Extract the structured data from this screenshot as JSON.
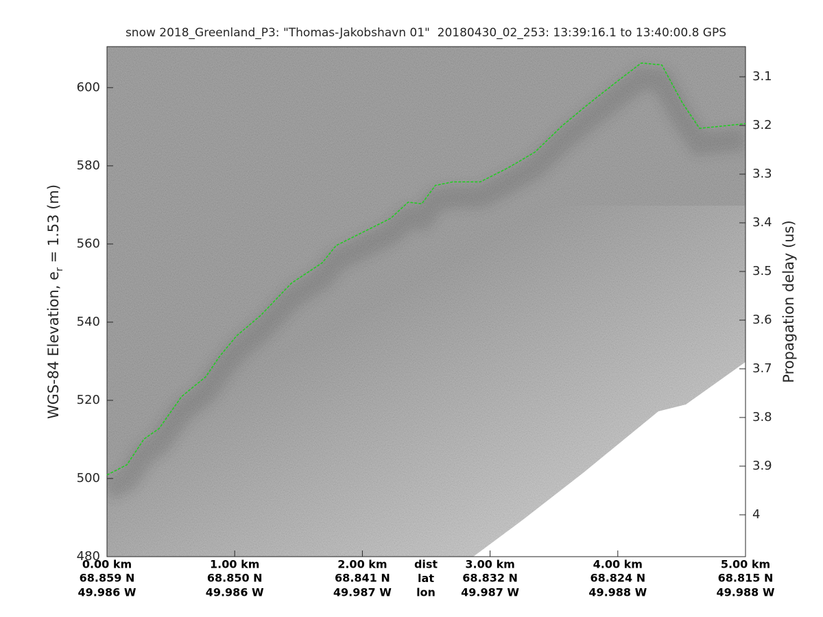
{
  "chart_data": {
    "type": "line",
    "title": "snow 2018_Greenland_P3: \"Thomas-Jakobshavn 01\"  20180430_02_253: 13:39:16.1 to 13:40:00.8 GPS",
    "ylabel": [
      "WGS-84 Elevation, e",
      "r",
      " = 1.53 (m)"
    ],
    "y2label": "Propagation delay (us)",
    "x": [
      0,
      0.156,
      0.29,
      0.408,
      0.585,
      0.773,
      0.881,
      1.015,
      1.203,
      1.445,
      1.686,
      1.794,
      2.009,
      2.223,
      2.358,
      2.465,
      2.572,
      2.707,
      2.922,
      3.136,
      3.351,
      3.566,
      3.781,
      4.023,
      4.184,
      4.345,
      4.506,
      4.64,
      4.855,
      5.0
    ],
    "series": [
      {
        "color": "#22cc22",
        "values": [
          500.9,
          503.5,
          510.1,
          512.8,
          521,
          526,
          531.2,
          536.5,
          541.7,
          550,
          555.2,
          559.6,
          563.1,
          566.6,
          570.7,
          570.3,
          575,
          575.9,
          575.9,
          579.4,
          583.5,
          590.3,
          596.1,
          602.3,
          606.3,
          605.8,
          596.1,
          589.6,
          590.3,
          590.8
        ]
      }
    ],
    "xlim": [
      0,
      5
    ],
    "xticks": [
      {
        "value": 0,
        "label": "0.00 km"
      },
      {
        "value": 1,
        "label": "1.00 km"
      },
      {
        "value": 2,
        "label": "2.00 km"
      },
      {
        "value": 3,
        "label": "3.00 km"
      },
      {
        "value": 4,
        "label": "4.00 km"
      },
      {
        "value": 5,
        "label": "5.00 km"
      }
    ],
    "lat_labels": [
      "68.859 N",
      "68.850 N",
      "68.841 N",
      "68.832 N",
      "68.824 N",
      "68.815 N"
    ],
    "lon_labels": [
      "49.986 W",
      "49.986 W",
      "49.987 W",
      "49.987 W",
      "49.988 W",
      "49.988 W"
    ],
    "row_labels": [
      "dist",
      "lat",
      "lon"
    ],
    "ylim": [
      480,
      610.5
    ],
    "yticks": [
      480,
      500,
      520,
      540,
      560,
      580,
      600
    ],
    "y2lim": [
      4.086,
      3.038
    ],
    "y2ticks": [
      3.1,
      3.2,
      3.3,
      3.4,
      3.5,
      3.6,
      3.7,
      3.8,
      3.9,
      4
    ]
  }
}
